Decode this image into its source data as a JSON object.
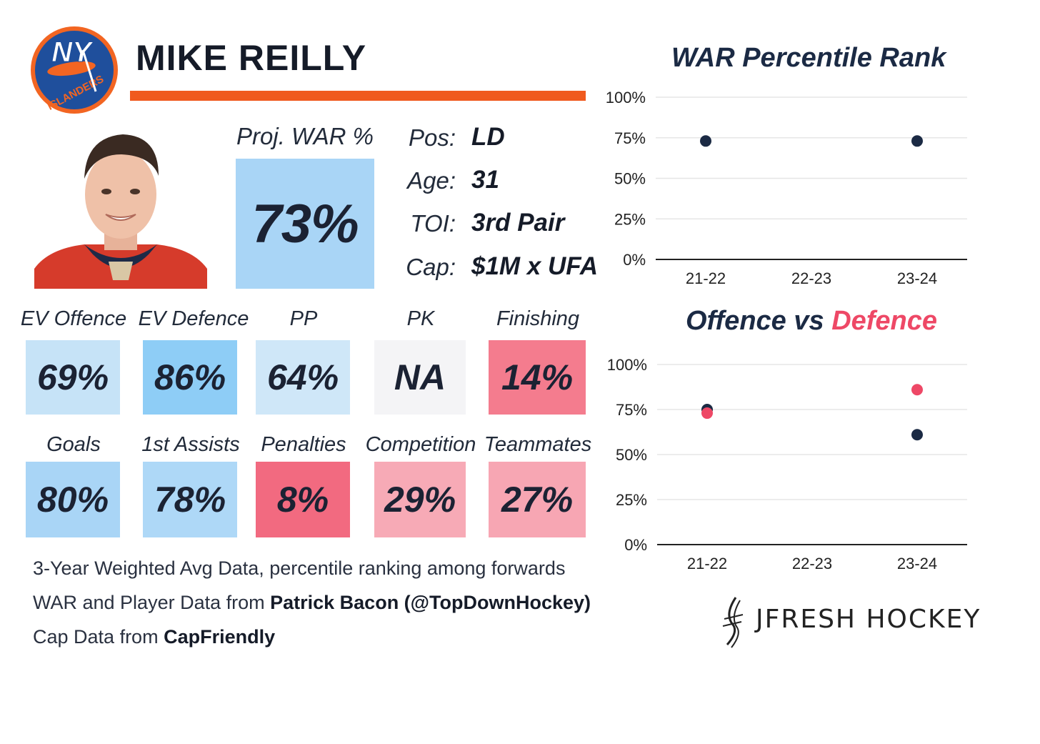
{
  "player": {
    "name": "MIKE REILLY",
    "team_logo_text": "NY ISLANDERS",
    "proj_war_label": "Proj. WAR %",
    "proj_war_value": "73%",
    "info": [
      {
        "label": "Pos:",
        "value": "LD"
      },
      {
        "label": "Age:",
        "value": "31"
      },
      {
        "label": "TOI:",
        "value": "3rd Pair"
      },
      {
        "label": "Cap:",
        "value": "$1M x UFA"
      }
    ]
  },
  "stats_row1": [
    {
      "label": "EV Offence",
      "value": "69%",
      "color": "#c6e3f7"
    },
    {
      "label": "EV Defence",
      "value": "86%",
      "color": "#8ecdf6"
    },
    {
      "label": "PP",
      "value": "64%",
      "color": "#cfe7f8"
    },
    {
      "label": "PK",
      "value": "NA",
      "color": "#f4f4f6"
    },
    {
      "label": "Finishing",
      "value": "14%",
      "color": "#f47c8e"
    }
  ],
  "stats_row2": [
    {
      "label": "Goals",
      "value": "80%",
      "color": "#a9d5f6"
    },
    {
      "label": "1st Assists",
      "value": "78%",
      "color": "#aed8f7"
    },
    {
      "label": "Penalties",
      "value": "8%",
      "color": "#f26a80"
    },
    {
      "label": "Competition",
      "value": "29%",
      "color": "#f7aab6"
    },
    {
      "label": "Teammates",
      "value": "27%",
      "color": "#f7a6b3"
    }
  ],
  "footer": {
    "line1": "3-Year Weighted Avg Data, percentile ranking among forwards",
    "line2_prefix": "WAR and Player Data from ",
    "line2_bold": "Patrick Bacon (@TopDownHockey)",
    "line3_prefix": "Cap Data from ",
    "line3_bold": "CapFriendly"
  },
  "brand": "JFRESH HOCKEY",
  "colors": {
    "navy": "#1b2a44",
    "red": "#ee4866",
    "orange": "#f05a1e"
  },
  "chart_data": [
    {
      "type": "scatter",
      "title": "WAR Percentile Rank",
      "categories": [
        "21-22",
        "22-23",
        "23-24"
      ],
      "yticks": [
        "0%",
        "25%",
        "50%",
        "75%",
        "100%"
      ],
      "ylim": [
        0,
        100
      ],
      "series": [
        {
          "values": [
            73,
            null,
            73
          ],
          "color": "#1b2a44"
        }
      ]
    },
    {
      "type": "scatter",
      "title_parts": [
        {
          "text": "Offence",
          "color": "#1b2a44"
        },
        {
          "text": " vs ",
          "color": "#1b2a44"
        },
        {
          "text": "Defence",
          "color": "#ee4866"
        }
      ],
      "categories": [
        "21-22",
        "22-23",
        "23-24"
      ],
      "yticks": [
        "0%",
        "25%",
        "50%",
        "75%",
        "100%"
      ],
      "ylim": [
        0,
        100
      ],
      "series": [
        {
          "name": "Offence",
          "values": [
            75,
            null,
            61
          ],
          "color": "#1b2a44"
        },
        {
          "name": "Defence",
          "values": [
            73,
            null,
            86
          ],
          "color": "#ee4866"
        }
      ]
    }
  ]
}
